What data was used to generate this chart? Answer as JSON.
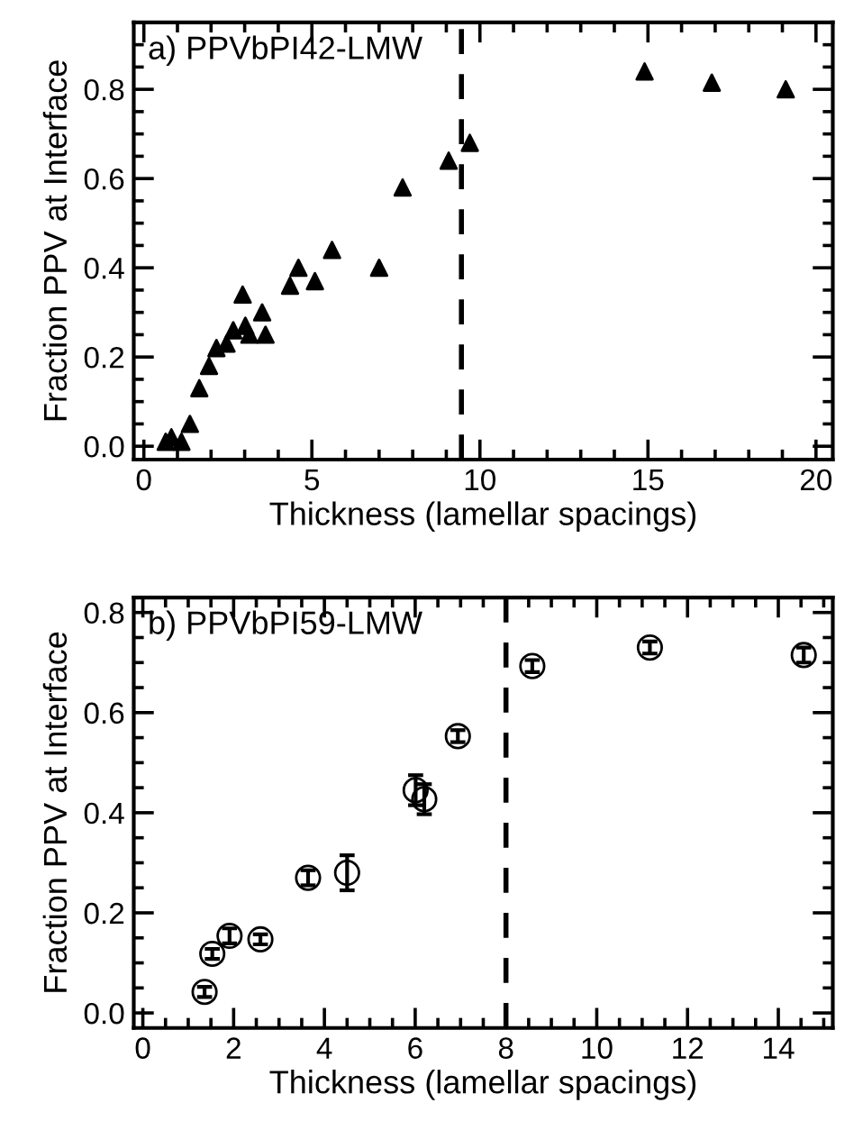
{
  "chart_data": [
    {
      "type": "scatter",
      "title": "a) PPVbPI42-LMW",
      "xlabel": "Thickness (lamellar spacings)",
      "ylabel": "Fraction PPV at Interface",
      "marker": "triangle",
      "x": [
        0.65,
        0.82,
        1.12,
        1.37,
        1.65,
        1.94,
        2.16,
        2.46,
        2.66,
        2.94,
        3.02,
        3.14,
        3.52,
        3.62,
        4.35,
        4.6,
        5.09,
        5.6,
        7.0,
        7.7,
        9.07,
        9.7,
        14.9,
        16.9,
        19.1
      ],
      "series": [
        {
          "color": "#000000",
          "values": [
            0.01,
            0.02,
            0.01,
            0.05,
            0.13,
            0.18,
            0.22,
            0.23,
            0.26,
            0.34,
            0.27,
            0.25,
            0.3,
            0.25,
            0.36,
            0.4,
            0.37,
            0.44,
            0.4,
            0.58,
            0.64,
            0.68,
            0.84,
            0.815,
            0.8
          ]
        }
      ],
      "xlim": [
        -0.3,
        20.5
      ],
      "ylim": [
        -0.03,
        0.95
      ],
      "xticks": [
        0,
        5,
        10,
        15,
        20
      ],
      "yticks": [
        {
          "value": 0,
          "label": "0.0"
        },
        0.2,
        0.4,
        0.6,
        0.8
      ],
      "ref_lines": [
        {
          "axis": "x",
          "value": 9.45,
          "color": "#000000",
          "line_style": "dashed"
        }
      ],
      "grid": false,
      "legend": false
    },
    {
      "type": "scatter",
      "title": "b) PPVbPI59-LMW",
      "xlabel": "Thickness (lamellar spacings)",
      "ylabel": "Fraction PPV at Interface",
      "marker": "circle",
      "x": [
        1.36,
        1.53,
        1.91,
        2.59,
        3.64,
        4.5,
        6.01,
        6.2,
        6.94,
        8.58,
        11.17,
        14.56
      ],
      "series": [
        {
          "color": "#000000",
          "values": [
            0.042,
            0.118,
            0.154,
            0.147,
            0.27,
            0.28,
            0.445,
            0.427,
            0.553,
            0.693,
            0.73,
            0.715
          ],
          "errors": [
            0.01,
            0.01,
            0.015,
            0.01,
            0.015,
            0.035,
            0.03,
            0.03,
            0.012,
            0.012,
            0.012,
            0.015
          ]
        }
      ],
      "xlim": [
        -0.2,
        15.2
      ],
      "ylim": [
        -0.03,
        0.83
      ],
      "xticks": [
        0,
        2,
        4,
        6,
        8,
        10,
        12,
        14
      ],
      "yticks": [
        {
          "value": 0,
          "label": "0.0"
        },
        0.2,
        0.4,
        0.6,
        0.8
      ],
      "ref_lines": [
        {
          "axis": "x",
          "value": 8.0,
          "color": "#000000",
          "line_style": "dashed"
        }
      ],
      "grid": false,
      "legend": false
    }
  ]
}
